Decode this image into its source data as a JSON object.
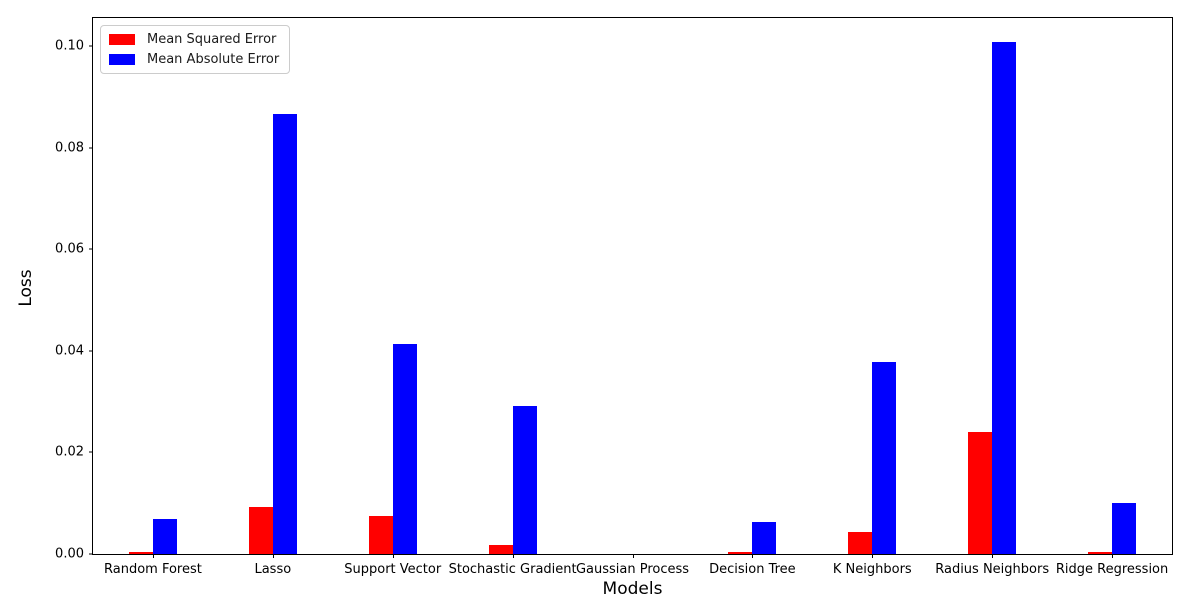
{
  "chart_data": {
    "type": "bar",
    "title": "",
    "xlabel": "Models",
    "ylabel": "Loss",
    "categories": [
      "Random Forest",
      "Lasso",
      "Support Vector",
      "Stochastic Gradient",
      "Gaussian Process",
      "Decision Tree",
      "K Neighbors",
      "Radius Neighbors",
      "Ridge Regression"
    ],
    "series": [
      {
        "name": "Mean Squared Error",
        "color": "#ff0000",
        "values": [
          0.0004,
          0.0092,
          0.0074,
          0.0017,
          0.0,
          0.0005,
          0.0043,
          0.024,
          0.0004
        ]
      },
      {
        "name": "Mean Absolute Error",
        "color": "#0000ff",
        "values": [
          0.0068,
          0.0862,
          0.0412,
          0.029,
          0.0,
          0.0063,
          0.0377,
          0.1005,
          0.0101
        ]
      }
    ],
    "ylim": [
      0,
      0.1055
    ],
    "yticks": [
      "0.00",
      "0.02",
      "0.04",
      "0.06",
      "0.08",
      "0.10"
    ],
    "ytick_values": [
      0,
      0.02,
      0.04,
      0.06,
      0.08,
      0.1
    ],
    "grid": false,
    "legend_position": "upper left"
  }
}
